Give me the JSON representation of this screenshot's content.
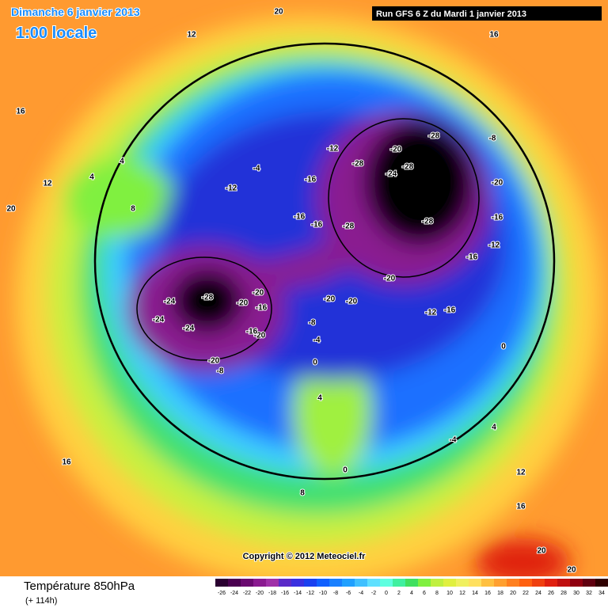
{
  "header": {
    "date": "Dimanche 6 janvier 2013",
    "time": "1:00 locale",
    "run": "Run GFS 6 Z du Mardi 1 janvier 2013"
  },
  "map": {
    "copyright": "Copyright © 2012 Meteociel.fr",
    "contour_labels": [
      -28,
      -28,
      -28,
      -28,
      -28,
      -28,
      -24,
      -24,
      -24,
      -24,
      -20,
      -20,
      -20,
      -20,
      -20,
      -20,
      -20,
      -20,
      -20,
      -16,
      -16,
      -16,
      -16,
      -16,
      -16,
      -16,
      -16,
      -12,
      -12,
      -12,
      -12,
      -8,
      -8,
      -8,
      -4,
      -4,
      -4,
      0,
      0,
      0,
      4,
      4,
      4,
      4,
      8,
      8,
      12,
      12,
      12,
      16,
      16,
      16,
      16,
      20,
      20,
      20,
      20
    ]
  },
  "footer": {
    "title": "Température 850hPa",
    "subtitle": "(+ 114h)"
  },
  "colorbar": {
    "ticks": [
      -26,
      -24,
      -22,
      -20,
      -18,
      -16,
      -14,
      -12,
      -10,
      -8,
      -6,
      -4,
      -2,
      0,
      2,
      4,
      6,
      8,
      10,
      12,
      14,
      16,
      18,
      20,
      22,
      24,
      26,
      28,
      30,
      32,
      34
    ],
    "colors": [
      "#2a0030",
      "#4a0050",
      "#6a0a70",
      "#8a1a90",
      "#a030a8",
      "#5a2ac8",
      "#3a30e0",
      "#1a40f0",
      "#1060ff",
      "#1a80ff",
      "#20a0ff",
      "#40c0ff",
      "#60e0ff",
      "#60ffe0",
      "#40f0a0",
      "#40e060",
      "#80f040",
      "#c0f040",
      "#e0f040",
      "#f0f060",
      "#ffe060",
      "#ffc040",
      "#ffa030",
      "#ff8020",
      "#ff6010",
      "#f04010",
      "#e02010",
      "#c01010",
      "#900010",
      "#600010",
      "#300000"
    ]
  }
}
